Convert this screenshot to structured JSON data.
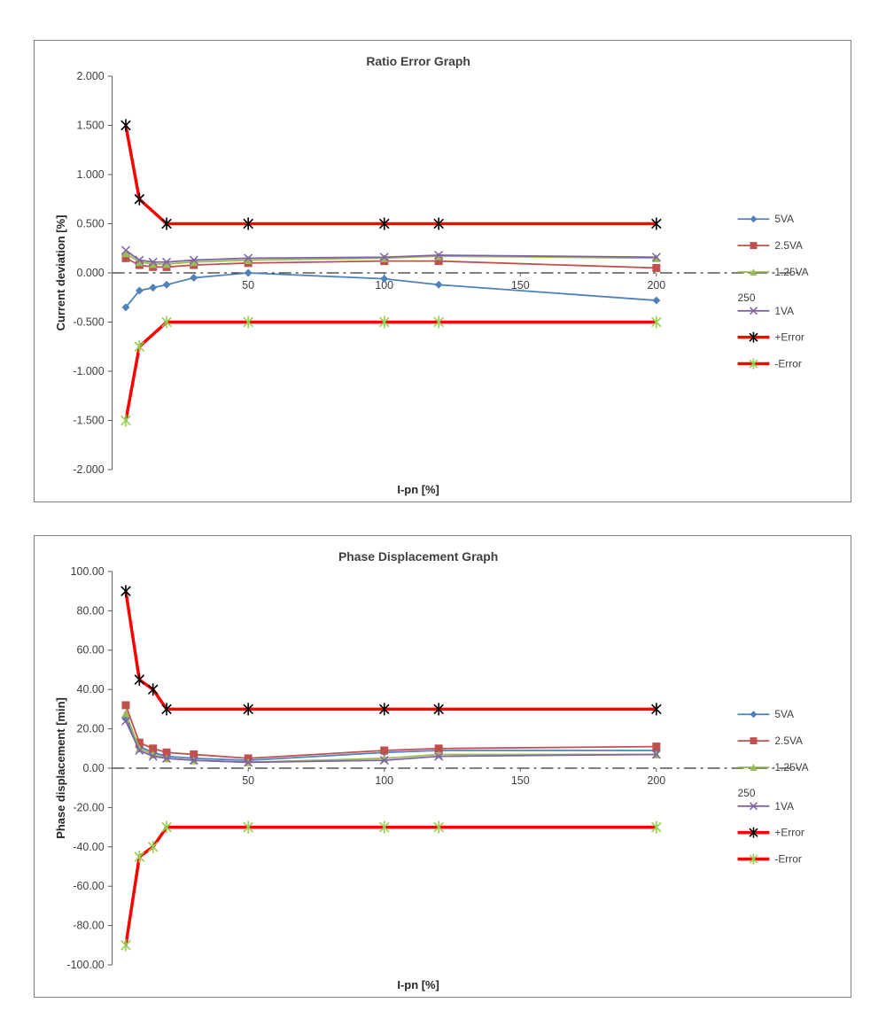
{
  "chart_data": [
    {
      "type": "line",
      "title": "Ratio Error Graph",
      "xlabel": "I-pn [%]",
      "ylabel": "Current deviation [%]",
      "xlim": [
        0,
        225
      ],
      "ylim": [
        -2.0,
        2.0
      ],
      "grid": false,
      "legend_position": "right",
      "yticks": {
        "values": [
          2.0,
          1.5,
          1.0,
          0.5,
          0.0,
          -0.5,
          -1.0,
          -1.5,
          -2.0
        ],
        "labels": [
          "2.000",
          "1.500",
          "1.000",
          "0.500",
          "0.000",
          "-0.500",
          "-1.000",
          "-1.500",
          "-2.000"
        ]
      },
      "xticks": {
        "values": [
          50,
          100,
          150,
          200
        ],
        "labels": [
          "50",
          "100",
          "150",
          "200"
        ]
      },
      "x": [
        5,
        10,
        15,
        20,
        30,
        50,
        100,
        120,
        200
      ],
      "series": [
        {
          "name": "5VA",
          "color": "#4F81BD",
          "marker": "diamond",
          "values": [
            -0.35,
            -0.18,
            -0.15,
            -0.12,
            -0.05,
            0.0,
            -0.06,
            -0.12,
            -0.28
          ]
        },
        {
          "name": "2.5VA",
          "color": "#C0504D",
          "marker": "square",
          "values": [
            0.15,
            0.08,
            0.06,
            0.06,
            0.08,
            0.1,
            0.12,
            0.12,
            0.05
          ]
        },
        {
          "name": "1.25VA",
          "color": "#9BBB59",
          "marker": "triangle",
          "values": [
            0.2,
            0.11,
            0.09,
            0.09,
            0.11,
            0.13,
            0.15,
            0.17,
            0.15
          ]
        },
        {
          "name": "1VA",
          "legend_extra": "250",
          "color": "#8064A2",
          "marker": "x",
          "values": [
            0.23,
            0.13,
            0.11,
            0.11,
            0.13,
            0.15,
            0.16,
            0.18,
            0.16
          ]
        },
        {
          "name": "+Error",
          "color": "#FF0000",
          "marker": "asterisk",
          "marker_color": "#000000",
          "line_width": 3.5,
          "x": [
            5,
            10,
            20,
            50,
            100,
            120,
            200
          ],
          "values": [
            1.5,
            0.75,
            0.5,
            0.5,
            0.5,
            0.5,
            0.5
          ]
        },
        {
          "name": "-Error",
          "color": "#FF0000",
          "marker": "asterisk",
          "marker_color": "#92D050",
          "line_width": 3.5,
          "x": [
            5,
            10,
            20,
            50,
            100,
            120,
            200
          ],
          "values": [
            -1.5,
            -0.75,
            -0.5,
            -0.5,
            -0.5,
            -0.5,
            -0.5
          ]
        }
      ]
    },
    {
      "type": "line",
      "title": "Phase Displacement  Graph",
      "xlabel": "I-pn [%]",
      "ylabel": "Phase displacement  [min]",
      "xlim": [
        0,
        225
      ],
      "ylim": [
        -100,
        100
      ],
      "grid": false,
      "legend_position": "right",
      "yticks": {
        "values": [
          100,
          80,
          60,
          40,
          20,
          0,
          -20,
          -40,
          -60,
          -80,
          -100
        ],
        "labels": [
          "100.00",
          "80.00",
          "60.00",
          "40.00",
          "20.00",
          "0.00",
          "-20.00",
          "-40.00",
          "-60.00",
          "-80.00",
          "-100.00"
        ]
      },
      "xticks": {
        "values": [
          50,
          100,
          150,
          200
        ],
        "labels": [
          "50",
          "100",
          "150",
          "200"
        ]
      },
      "x": [
        5,
        10,
        15,
        20,
        30,
        50,
        100,
        120,
        200
      ],
      "series": [
        {
          "name": "5VA",
          "color": "#4F81BD",
          "marker": "diamond",
          "values": [
            25,
            11,
            8,
            6,
            5,
            4,
            8,
            9,
            9
          ]
        },
        {
          "name": "2.5VA",
          "color": "#C0504D",
          "marker": "square",
          "values": [
            32,
            13,
            10,
            8,
            7,
            5,
            9,
            10,
            11
          ]
        },
        {
          "name": "1.25VA",
          "color": "#9BBB59",
          "marker": "triangle",
          "values": [
            28,
            10,
            7,
            5,
            4,
            3,
            5,
            7,
            7
          ]
        },
        {
          "name": "1VA",
          "legend_extra": "250",
          "color": "#8064A2",
          "marker": "x",
          "values": [
            24,
            9,
            6,
            5,
            4,
            3,
            4,
            6,
            7
          ]
        },
        {
          "name": "+Error",
          "color": "#FF0000",
          "marker": "asterisk",
          "marker_color": "#000000",
          "line_width": 3.5,
          "x": [
            5,
            10,
            15,
            20,
            50,
            100,
            120,
            200
          ],
          "values": [
            90,
            45,
            40,
            30,
            30,
            30,
            30,
            30
          ]
        },
        {
          "name": "-Error",
          "color": "#FF0000",
          "marker": "asterisk",
          "marker_color": "#92D050",
          "line_width": 3.5,
          "x": [
            5,
            10,
            15,
            20,
            50,
            100,
            120,
            200
          ],
          "values": [
            -90,
            -45,
            -40,
            -30,
            -30,
            -30,
            -30,
            -30
          ]
        }
      ]
    }
  ],
  "colors": {
    "axis": "#595959",
    "tick_text": "#3F3F3F",
    "title_text": "#404040",
    "zero_line": "#000000"
  }
}
